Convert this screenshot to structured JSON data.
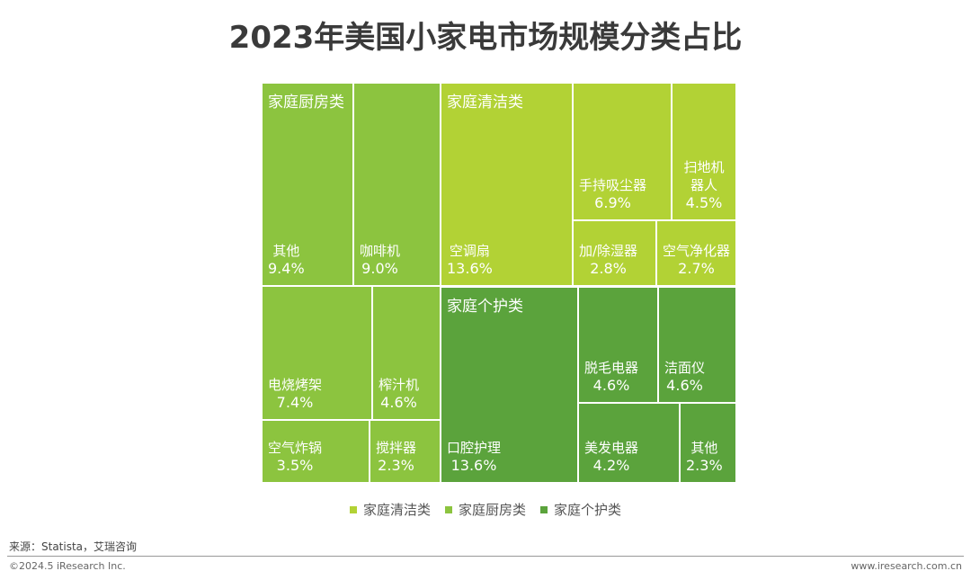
{
  "chart_data": {
    "type": "treemap",
    "title": "2023年美国小家电市场规模分类占比",
    "series": [
      {
        "name": "家庭厨房类",
        "color": "#8cc43f",
        "items": [
          {
            "name": "其他",
            "value": 9.4,
            "value_label": "9.4%"
          },
          {
            "name": "咖啡机",
            "value": 9.0,
            "value_label": "9.0%"
          },
          {
            "name": "电烧烤架",
            "value": 7.4,
            "value_label": "7.4%"
          },
          {
            "name": "榨汁机",
            "value": 4.6,
            "value_label": "4.6%"
          },
          {
            "name": "空气炸锅",
            "value": 3.5,
            "value_label": "3.5%"
          },
          {
            "name": "搅拌器",
            "value": 2.3,
            "value_label": "2.3%"
          }
        ]
      },
      {
        "name": "家庭清洁类",
        "color": "#b2d235",
        "items": [
          {
            "name": "空调扇",
            "value": 13.6,
            "value_label": "13.6%"
          },
          {
            "name": "手持吸尘器",
            "value": 6.9,
            "value_label": "6.9%"
          },
          {
            "name": "扫地机器人",
            "value": 4.5,
            "value_label": "4.5%"
          },
          {
            "name": "加/除湿器",
            "value": 2.8,
            "value_label": "2.8%"
          },
          {
            "name": "空气净化器",
            "value": 2.7,
            "value_label": "2.7%"
          }
        ]
      },
      {
        "name": "家庭个护类",
        "color": "#5ba33c",
        "items": [
          {
            "name": "口腔护理",
            "value": 13.6,
            "value_label": "13.6%"
          },
          {
            "name": "脱毛电器",
            "value": 4.6,
            "value_label": "4.6%"
          },
          {
            "name": "洁面仪",
            "value": 4.6,
            "value_label": "4.6%"
          },
          {
            "name": "美发电器",
            "value": 4.2,
            "value_label": "4.2%"
          },
          {
            "name": "其他",
            "value": 2.3,
            "value_label": "2.3%"
          }
        ]
      }
    ],
    "legend_order": [
      1,
      0,
      2
    ]
  },
  "footer": {
    "source": "来源：Statista，艾瑞咨询",
    "copyright": "©2024.5 iResearch Inc.",
    "website": "www.iresearch.com.cn"
  }
}
